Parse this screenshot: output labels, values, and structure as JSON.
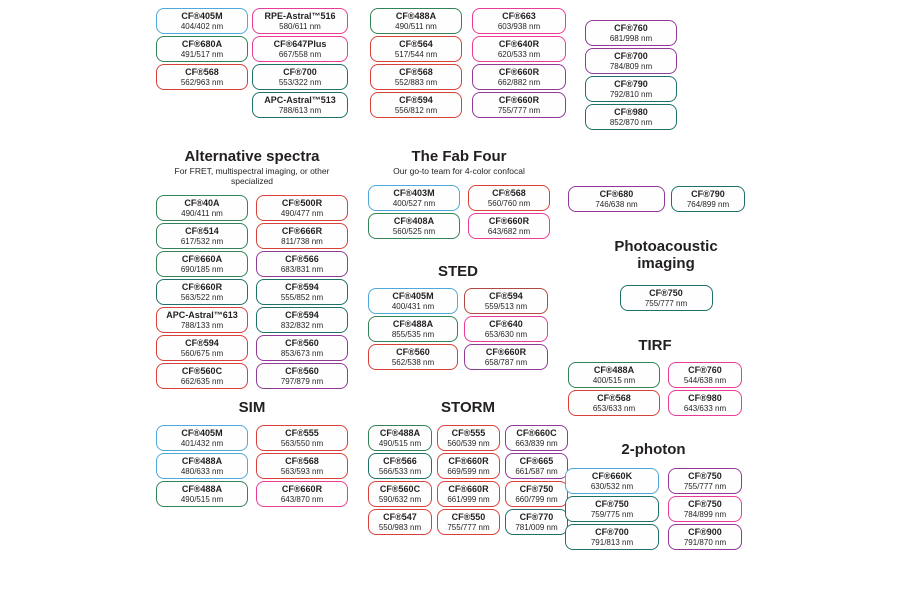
{
  "colors": {
    "blue": "#4fa8dc",
    "green": "#338258",
    "teal": "#20706a",
    "red": "#d8403a",
    "maroon": "#b04743",
    "pink": "#ea3c96",
    "purple": "#8f3a97"
  },
  "groups": {
    "top_left": {
      "columns": [
        [
          {
            "name": "CF®405M",
            "value": "404/402 nm",
            "color": "blue"
          },
          {
            "name": "CF®680A",
            "value": "491/517 nm",
            "color": "green"
          },
          {
            "name": "CF®568",
            "value": "562/963 nm",
            "color": "red"
          }
        ],
        [
          {
            "name": "RPE-Astral™516",
            "value": "580/611 nm",
            "color": "pink"
          },
          {
            "name": "CF®647Plus",
            "value": "667/558 nm",
            "color": "pink"
          },
          {
            "name": "CF®700",
            "value": "553/322 nm",
            "color": "teal"
          },
          {
            "name": "APC-Astral™513",
            "value": "788/613 nm",
            "color": "teal"
          }
        ],
        [
          {
            "name": "CF®488A",
            "value": "490/511 nm",
            "color": "green"
          },
          {
            "name": "CF®564",
            "value": "517/544 nm",
            "color": "red"
          },
          {
            "name": "CF®568",
            "value": "552/883 nm",
            "color": "red"
          },
          {
            "name": "CF®594",
            "value": "556/812 nm",
            "color": "red"
          }
        ],
        [
          {
            "name": "CF®663",
            "value": "603/938 nm",
            "color": "pink"
          },
          {
            "name": "CF®640R",
            "value": "620/533 nm",
            "color": "pink"
          },
          {
            "name": "CF®660R",
            "value": "662/882 nm",
            "color": "purple"
          },
          {
            "name": "CF®660R",
            "value": "755/777 nm",
            "color": "purple"
          }
        ]
      ]
    },
    "top_right": {
      "columns": [
        [
          {
            "name": "CF®760",
            "value": "681/998 nm",
            "color": "purple"
          },
          {
            "name": "CF®700",
            "value": "784/809 nm",
            "color": "purple"
          },
          {
            "name": "CF®790",
            "value": "792/810 nm",
            "color": "teal"
          },
          {
            "name": "CF®980",
            "value": "852/870 nm",
            "color": "teal"
          }
        ]
      ]
    },
    "alt": {
      "title": "Alternative spectra",
      "subtitle": "For FRET, multispectral imaging, or other specialized",
      "columns": [
        [
          {
            "name": "CF®40A",
            "value": "490/411 nm",
            "color": "green"
          },
          {
            "name": "CF®514",
            "value": "617/532 nm",
            "color": "green"
          },
          {
            "name": "CF®660A",
            "value": "690/185 nm",
            "color": "green"
          },
          {
            "name": "CF®660R",
            "value": "563/522 nm",
            "color": "teal"
          },
          {
            "name": "APC-Astral™613",
            "value": "788/133 nm",
            "color": "red"
          },
          {
            "name": "CF®594",
            "value": "560/675 nm",
            "color": "red"
          },
          {
            "name": "CF®560C",
            "value": "662/635 nm",
            "color": "red"
          }
        ],
        [
          {
            "name": "CF®500R",
            "value": "490/477 nm",
            "color": "red"
          },
          {
            "name": "CF®666R",
            "value": "811/738 nm",
            "color": "red"
          },
          {
            "name": "CF®566",
            "value": "683/831 nm",
            "color": "purple"
          },
          {
            "name": "CF®594",
            "value": "555/852 nm",
            "color": "teal"
          },
          {
            "name": "CF®594",
            "value": "832/832 nm",
            "color": "teal"
          },
          {
            "name": "CF®560",
            "value": "853/673 nm",
            "color": "purple"
          },
          {
            "name": "CF®560",
            "value": "797/879 nm",
            "color": "purple"
          }
        ]
      ]
    },
    "fab": {
      "title": "The Fab Four",
      "subtitle": "Our go-to team for 4-color confocal",
      "columns": [
        [
          {
            "name": "CF®403M",
            "value": "400/527 nm",
            "color": "blue"
          },
          {
            "name": "CF®408A",
            "value": "560/525 nm",
            "color": "green"
          }
        ],
        [
          {
            "name": "CF®568",
            "value": "560/760 nm",
            "color": "red"
          },
          {
            "name": "CF®660R",
            "value": "643/682 nm",
            "color": "pink"
          }
        ]
      ]
    },
    "sted": {
      "title": "STED",
      "columns": [
        [
          {
            "name": "CF®405M",
            "value": "400/431 nm",
            "color": "blue"
          },
          {
            "name": "CF®488A",
            "value": "855/535 nm",
            "color": "green"
          },
          {
            "name": "CF®560",
            "value": "562/538 nm",
            "color": "red"
          }
        ],
        [
          {
            "name": "CF®594",
            "value": "559/513 nm",
            "color": "maroon"
          },
          {
            "name": "CF®640",
            "value": "653/630 nm",
            "color": "pink"
          },
          {
            "name": "CF®660R",
            "value": "658/787 nm",
            "color": "purple"
          }
        ]
      ]
    },
    "sim": {
      "title": "SIM",
      "columns": [
        [
          {
            "name": "CF®405M",
            "value": "401/432 nm",
            "color": "blue"
          },
          {
            "name": "CF®488A",
            "value": "480/633 nm",
            "color": "blue"
          },
          {
            "name": "CF®488A",
            "value": "490/515 nm",
            "color": "green"
          }
        ],
        [
          {
            "name": "CF®555",
            "value": "563/550 nm",
            "color": "red"
          },
          {
            "name": "CF®568",
            "value": "563/593 nm",
            "color": "red"
          },
          {
            "name": "CF®660R",
            "value": "643/870 nm",
            "color": "pink"
          }
        ]
      ]
    },
    "storm": {
      "title": "STORM",
      "columns": [
        [
          {
            "name": "CF®488A",
            "value": "490/515 nm",
            "color": "green"
          },
          {
            "name": "CF®566",
            "value": "566/533 nm",
            "color": "teal"
          },
          {
            "name": "CF®560C",
            "value": "590/632 nm",
            "color": "red"
          },
          {
            "name": "CF®547",
            "value": "550/983 nm",
            "color": "red"
          }
        ],
        [
          {
            "name": "CF®555",
            "value": "560/539 nm",
            "color": "red"
          },
          {
            "name": "CF®660R",
            "value": "669/599 nm",
            "color": "red"
          },
          {
            "name": "CF®660R",
            "value": "661/999 nm",
            "color": "red"
          },
          {
            "name": "CF®550",
            "value": "755/777 nm",
            "color": "red"
          }
        ],
        [
          {
            "name": "CF®660C",
            "value": "663/839 nm",
            "color": "purple"
          },
          {
            "name": "CF®665",
            "value": "661/587 nm",
            "color": "purple"
          },
          {
            "name": "CF®750",
            "value": "660/799 nm",
            "color": "red"
          },
          {
            "name": "CF®770",
            "value": "781/009 nm",
            "color": "teal"
          }
        ]
      ]
    },
    "duo": {
      "columns": [
        [
          {
            "name": "CF®680",
            "value": "746/638 nm",
            "color": "purple"
          }
        ],
        [
          {
            "name": "CF®790",
            "value": "764/899 nm",
            "color": "teal"
          }
        ]
      ]
    },
    "photo": {
      "title": "Photoacoustic imaging",
      "columns": [
        [
          {
            "name": "CF®750",
            "value": "755/777 nm",
            "color": "teal"
          }
        ]
      ]
    },
    "tirf": {
      "title": "TIRF",
      "columns": [
        [
          {
            "name": "CF®488A",
            "value": "400/515 nm",
            "color": "green"
          },
          {
            "name": "CF®568",
            "value": "653/633 nm",
            "color": "red"
          }
        ],
        [
          {
            "name": "CF®760",
            "value": "544/638 nm",
            "color": "pink"
          },
          {
            "name": "CF®980",
            "value": "643/633 nm",
            "color": "pink"
          }
        ]
      ]
    },
    "twophoton": {
      "title": "2-photon",
      "columns": [
        [
          {
            "name": "CF®660K",
            "value": "630/532 nm",
            "color": "blue"
          },
          {
            "name": "CF®750",
            "value": "759/775 nm",
            "color": "teal"
          },
          {
            "name": "CF®700",
            "value": "791/813 nm",
            "color": "teal"
          }
        ],
        [
          {
            "name": "CF®750",
            "value": "755/777 nm",
            "color": "purple"
          },
          {
            "name": "CF®750",
            "value": "784/899 nm",
            "color": "pink"
          },
          {
            "name": "CF®900",
            "value": "791/870 nm",
            "color": "purple"
          }
        ]
      ]
    }
  }
}
